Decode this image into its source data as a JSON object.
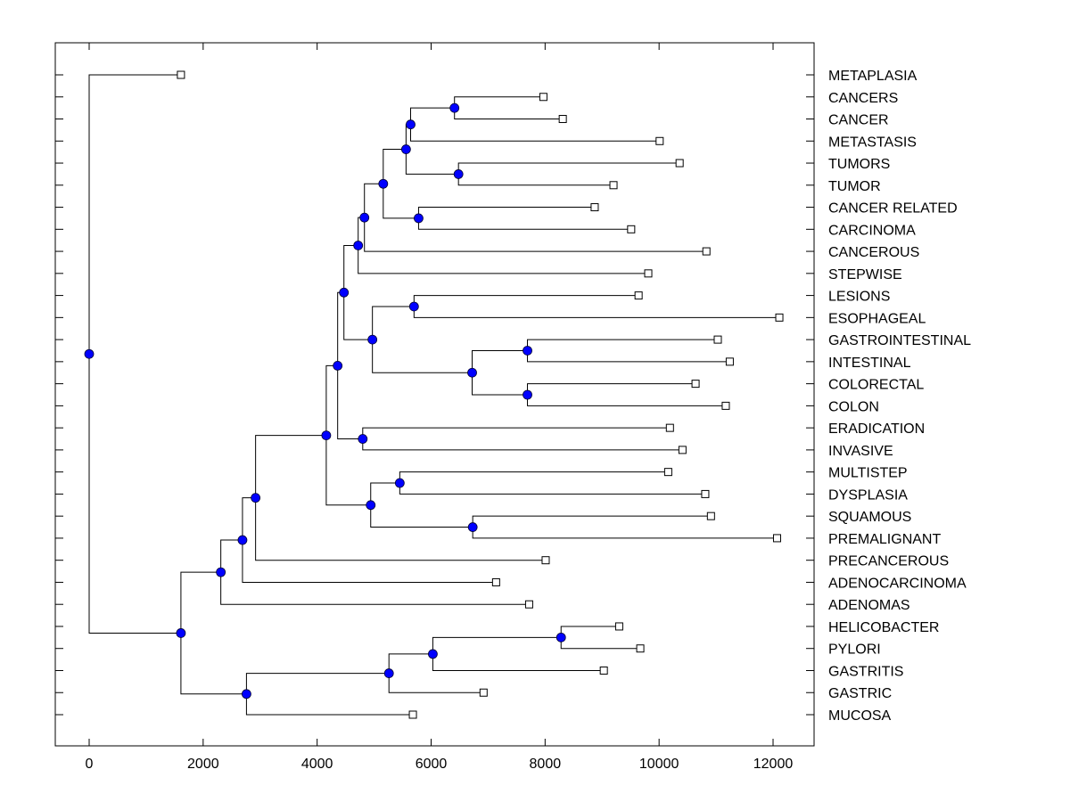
{
  "chart_data": {
    "type": "dendrogram",
    "title": "",
    "xlabel": "",
    "ylabel": "",
    "xlim": [
      -600,
      12700
    ],
    "xticks": [
      0,
      2000,
      4000,
      6000,
      8000,
      10000,
      12000
    ],
    "xtick_labels": [
      "0",
      "2000",
      "4000",
      "6000",
      "8000",
      "10000",
      "12000"
    ],
    "grid": false,
    "colors": {
      "node_fill": "#0000ff",
      "line": "#000000",
      "leaf_fill": "#ffffff"
    },
    "leaves": [
      {
        "label": "METAPLASIA",
        "value": 1610
      },
      {
        "label": "CANCERS",
        "value": 7970
      },
      {
        "label": "CANCER",
        "value": 8310
      },
      {
        "label": "METASTASIS",
        "value": 10010
      },
      {
        "label": "TUMORS",
        "value": 10360
      },
      {
        "label": "TUMOR",
        "value": 9200
      },
      {
        "label": "CANCER RELATED",
        "value": 8870
      },
      {
        "label": "CARCINOMA",
        "value": 9510
      },
      {
        "label": "CANCEROUS",
        "value": 10830
      },
      {
        "label": "STEPWISE",
        "value": 9810
      },
      {
        "label": "LESIONS",
        "value": 9640
      },
      {
        "label": "ESOPHAGEAL",
        "value": 12110
      },
      {
        "label": "GASTROINTESTINAL",
        "value": 11030
      },
      {
        "label": "INTESTINAL",
        "value": 11240
      },
      {
        "label": "COLORECTAL",
        "value": 10640
      },
      {
        "label": "COLON",
        "value": 11170
      },
      {
        "label": "ERADICATION",
        "value": 10190
      },
      {
        "label": "INVASIVE",
        "value": 10410
      },
      {
        "label": "MULTISTEP",
        "value": 10160
      },
      {
        "label": "DYSPLASIA",
        "value": 10810
      },
      {
        "label": "SQUAMOUS",
        "value": 10910
      },
      {
        "label": "PREMALIGNANT",
        "value": 12070
      },
      {
        "label": "PRECANCEROUS",
        "value": 8010
      },
      {
        "label": "ADENOCARCINOMA",
        "value": 7140
      },
      {
        "label": "ADENOMAS",
        "value": 7720
      },
      {
        "label": "HELICOBACTER",
        "value": 9300
      },
      {
        "label": "PYLORI",
        "value": 9670
      },
      {
        "label": "GASTRITIS",
        "value": 9030
      },
      {
        "label": "GASTRIC",
        "value": 6920
      },
      {
        "label": "MUCOSA",
        "value": 5680
      }
    ],
    "nodes": [
      {
        "id": "root",
        "value": 0,
        "children": [
          "L0",
          "n1"
        ]
      },
      {
        "id": "n1",
        "value": 1610,
        "children": [
          "nA",
          "nB"
        ]
      },
      {
        "id": "nA",
        "value": 2310,
        "children": [
          "nA2",
          "L24"
        ]
      },
      {
        "id": "nA2",
        "value": 2690,
        "children": [
          "nA3",
          "L23"
        ]
      },
      {
        "id": "nA3",
        "value": 2920,
        "children": [
          "nA4",
          "L22"
        ]
      },
      {
        "id": "nA4",
        "value": 4160,
        "children": [
          "nC",
          "nD"
        ]
      },
      {
        "id": "nC",
        "value": 4360,
        "children": [
          "nE",
          "nF"
        ]
      },
      {
        "id": "nE",
        "value": 4470,
        "children": [
          "nG",
          "nH"
        ]
      },
      {
        "id": "nG",
        "value": 4720,
        "children": [
          "nI",
          "L9"
        ]
      },
      {
        "id": "nI",
        "value": 4830,
        "children": [
          "nJ",
          "L8"
        ]
      },
      {
        "id": "nJ",
        "value": 5160,
        "children": [
          "nK",
          "nL"
        ]
      },
      {
        "id": "nK",
        "value": 5560,
        "children": [
          "nM",
          "nN"
        ]
      },
      {
        "id": "nM",
        "value": 5640,
        "children": [
          "nO",
          "L3"
        ]
      },
      {
        "id": "nO",
        "value": 6410,
        "children": [
          "L1",
          "L2"
        ]
      },
      {
        "id": "nN",
        "value": 6480,
        "children": [
          "L4",
          "L5"
        ]
      },
      {
        "id": "nL",
        "value": 5780,
        "children": [
          "L6",
          "L7"
        ]
      },
      {
        "id": "nH",
        "value": 4970,
        "children": [
          "nP",
          "nQ"
        ]
      },
      {
        "id": "nP",
        "value": 5700,
        "children": [
          "L10",
          "L11"
        ]
      },
      {
        "id": "nQ",
        "value": 6720,
        "children": [
          "nR",
          "nS"
        ]
      },
      {
        "id": "nR",
        "value": 7690,
        "children": [
          "L12",
          "L13"
        ]
      },
      {
        "id": "nS",
        "value": 7690,
        "children": [
          "L14",
          "L15"
        ]
      },
      {
        "id": "nF",
        "value": 4800,
        "children": [
          "L16",
          "L17"
        ]
      },
      {
        "id": "nD",
        "value": 4940,
        "children": [
          "nT",
          "nU"
        ]
      },
      {
        "id": "nT",
        "value": 5450,
        "children": [
          "L18",
          "L19"
        ]
      },
      {
        "id": "nU",
        "value": 6730,
        "children": [
          "L20",
          "L21"
        ]
      },
      {
        "id": "nB",
        "value": 2760,
        "children": [
          "nV",
          "L29"
        ]
      },
      {
        "id": "nV",
        "value": 5260,
        "children": [
          "nW",
          "L28"
        ]
      },
      {
        "id": "nW",
        "value": 6030,
        "children": [
          "nX",
          "L27"
        ]
      },
      {
        "id": "nX",
        "value": 8280,
        "children": [
          "L25",
          "L26"
        ]
      }
    ]
  }
}
